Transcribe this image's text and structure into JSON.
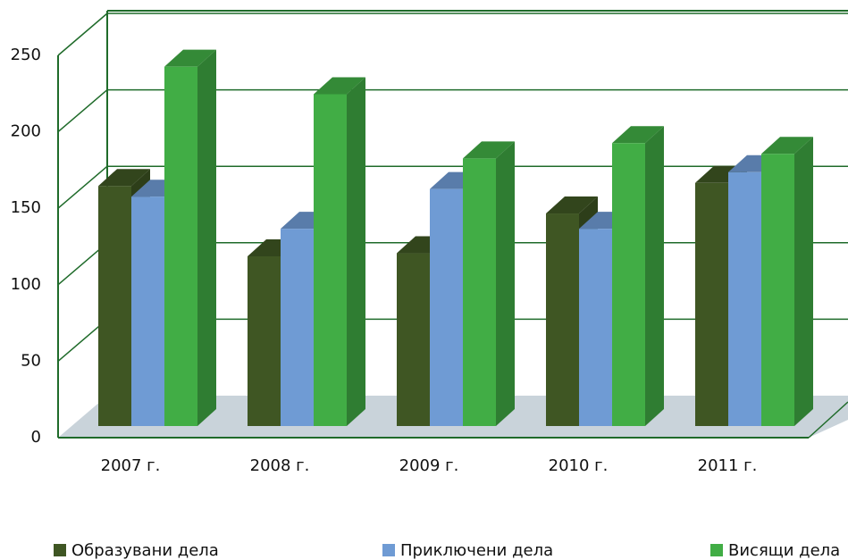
{
  "chart_data": {
    "type": "bar3d",
    "categories": [
      "2007 г.",
      "2008 г.",
      "2009 г.",
      "2010 г.",
      "2011 г."
    ],
    "series": [
      {
        "name": "Образувани дела",
        "color": "#3f5623",
        "values": [
          157,
          111,
          113,
          139,
          159
        ]
      },
      {
        "name": "Приключени дела",
        "color": "#6f9bd4",
        "values": [
          150,
          129,
          155,
          129,
          166
        ]
      },
      {
        "name": "Висящи дела",
        "color": "#41ad45",
        "values": [
          235,
          217,
          175,
          185,
          178
        ]
      }
    ],
    "ylim": [
      0,
      250
    ],
    "yticks": [
      0,
      50,
      100,
      150,
      200,
      250
    ],
    "grid": true
  }
}
